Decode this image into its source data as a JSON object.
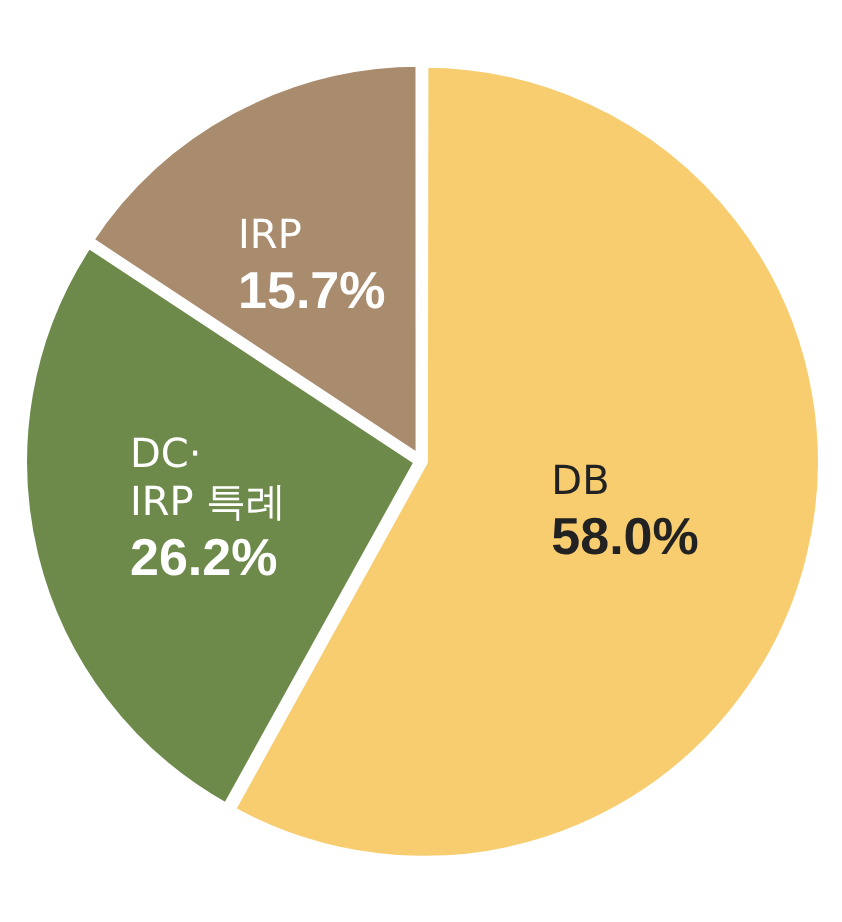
{
  "chart_data": {
    "type": "pie",
    "categories": [
      "DB",
      "DC·\nIRP 특례",
      "IRP"
    ],
    "values": [
      58.0,
      26.2,
      15.7
    ],
    "value_labels": [
      "58.0%",
      "26.2%",
      "15.7%"
    ],
    "colors": [
      "#f7cd6f",
      "#6d8a4b",
      "#a98b6d"
    ],
    "legend": false
  }
}
